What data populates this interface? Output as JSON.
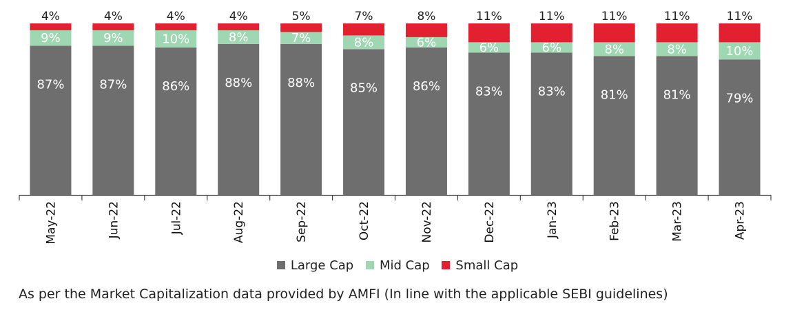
{
  "chart_data": {
    "type": "bar",
    "stacked": true,
    "title": "",
    "xlabel": "",
    "ylabel": "",
    "ylim": [
      0,
      100
    ],
    "grid": false,
    "legend_position": "bottom",
    "categories": [
      "May-22",
      "Jun-22",
      "Jul-22",
      "Aug-22",
      "Sep-22",
      "Oct-22",
      "Nov-22",
      "Dec-22",
      "Jan-23",
      "Feb-23",
      "Mar-23",
      "Apr-23"
    ],
    "series": [
      {
        "name": "Large Cap",
        "color": "#6e6e6e",
        "values": [
          87,
          87,
          86,
          88,
          88,
          85,
          86,
          83,
          83,
          81,
          81,
          79
        ]
      },
      {
        "name": "Mid Cap",
        "color": "#9fd7b3",
        "values": [
          9,
          9,
          10,
          8,
          7,
          8,
          6,
          6,
          6,
          8,
          8,
          10
        ]
      },
      {
        "name": "Small Cap",
        "color": "#e3202f",
        "values": [
          4,
          4,
          4,
          4,
          5,
          7,
          8,
          11,
          11,
          11,
          11,
          11
        ]
      }
    ],
    "value_suffix": "%"
  },
  "note": "As per the Market Capitalization data provided by AMFI (In line with the applicable SEBI guidelines)"
}
